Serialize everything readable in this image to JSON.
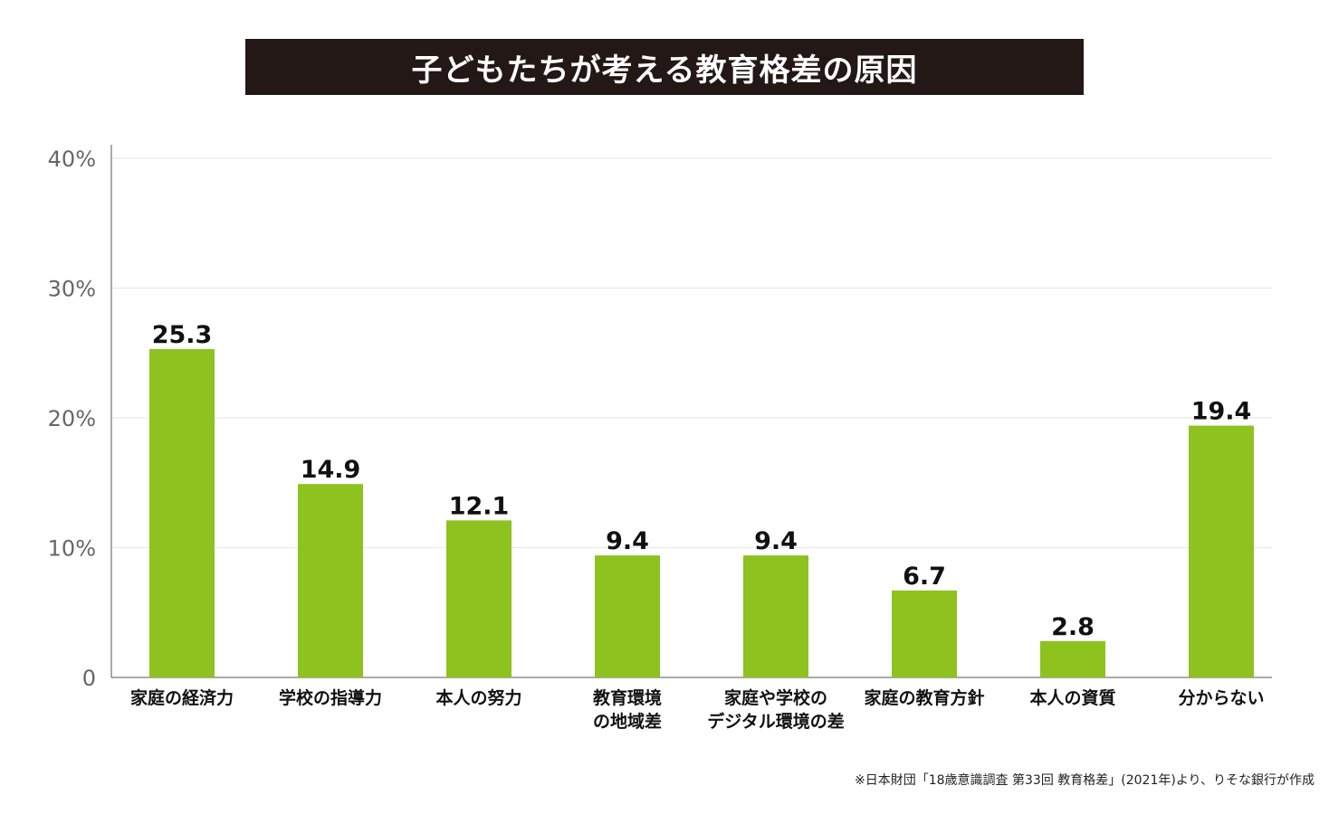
{
  "chart_data": {
    "type": "bar",
    "title": "子どもたちが考える教育格差の原因",
    "categories": [
      [
        "家庭の経済力"
      ],
      [
        "学校の指導力"
      ],
      [
        "本人の努力"
      ],
      [
        "教育環境",
        "の地域差"
      ],
      [
        "家庭や学校の",
        "デジタル環境の差"
      ],
      [
        "家庭の教育方針"
      ],
      [
        "本人の資質"
      ],
      [
        "分からない"
      ]
    ],
    "values": [
      25.3,
      14.9,
      12.1,
      9.4,
      9.4,
      6.7,
      2.8,
      19.4
    ],
    "value_labels": [
      "25.3",
      "14.9",
      "12.1",
      "9.4",
      "9.4",
      "6.7",
      "2.8",
      "19.4"
    ],
    "ylim": [
      0,
      40
    ],
    "yticks": [
      0,
      10,
      20,
      30,
      40
    ],
    "ytick_labels": [
      "0",
      "10%",
      "20%",
      "30%",
      "40%"
    ],
    "grid": true,
    "bar_color": "#8dc21f",
    "footnote": "※日本財団「18歳意識調査 第33回 教育格差」(2021年)より、りそな銀行が作成"
  }
}
